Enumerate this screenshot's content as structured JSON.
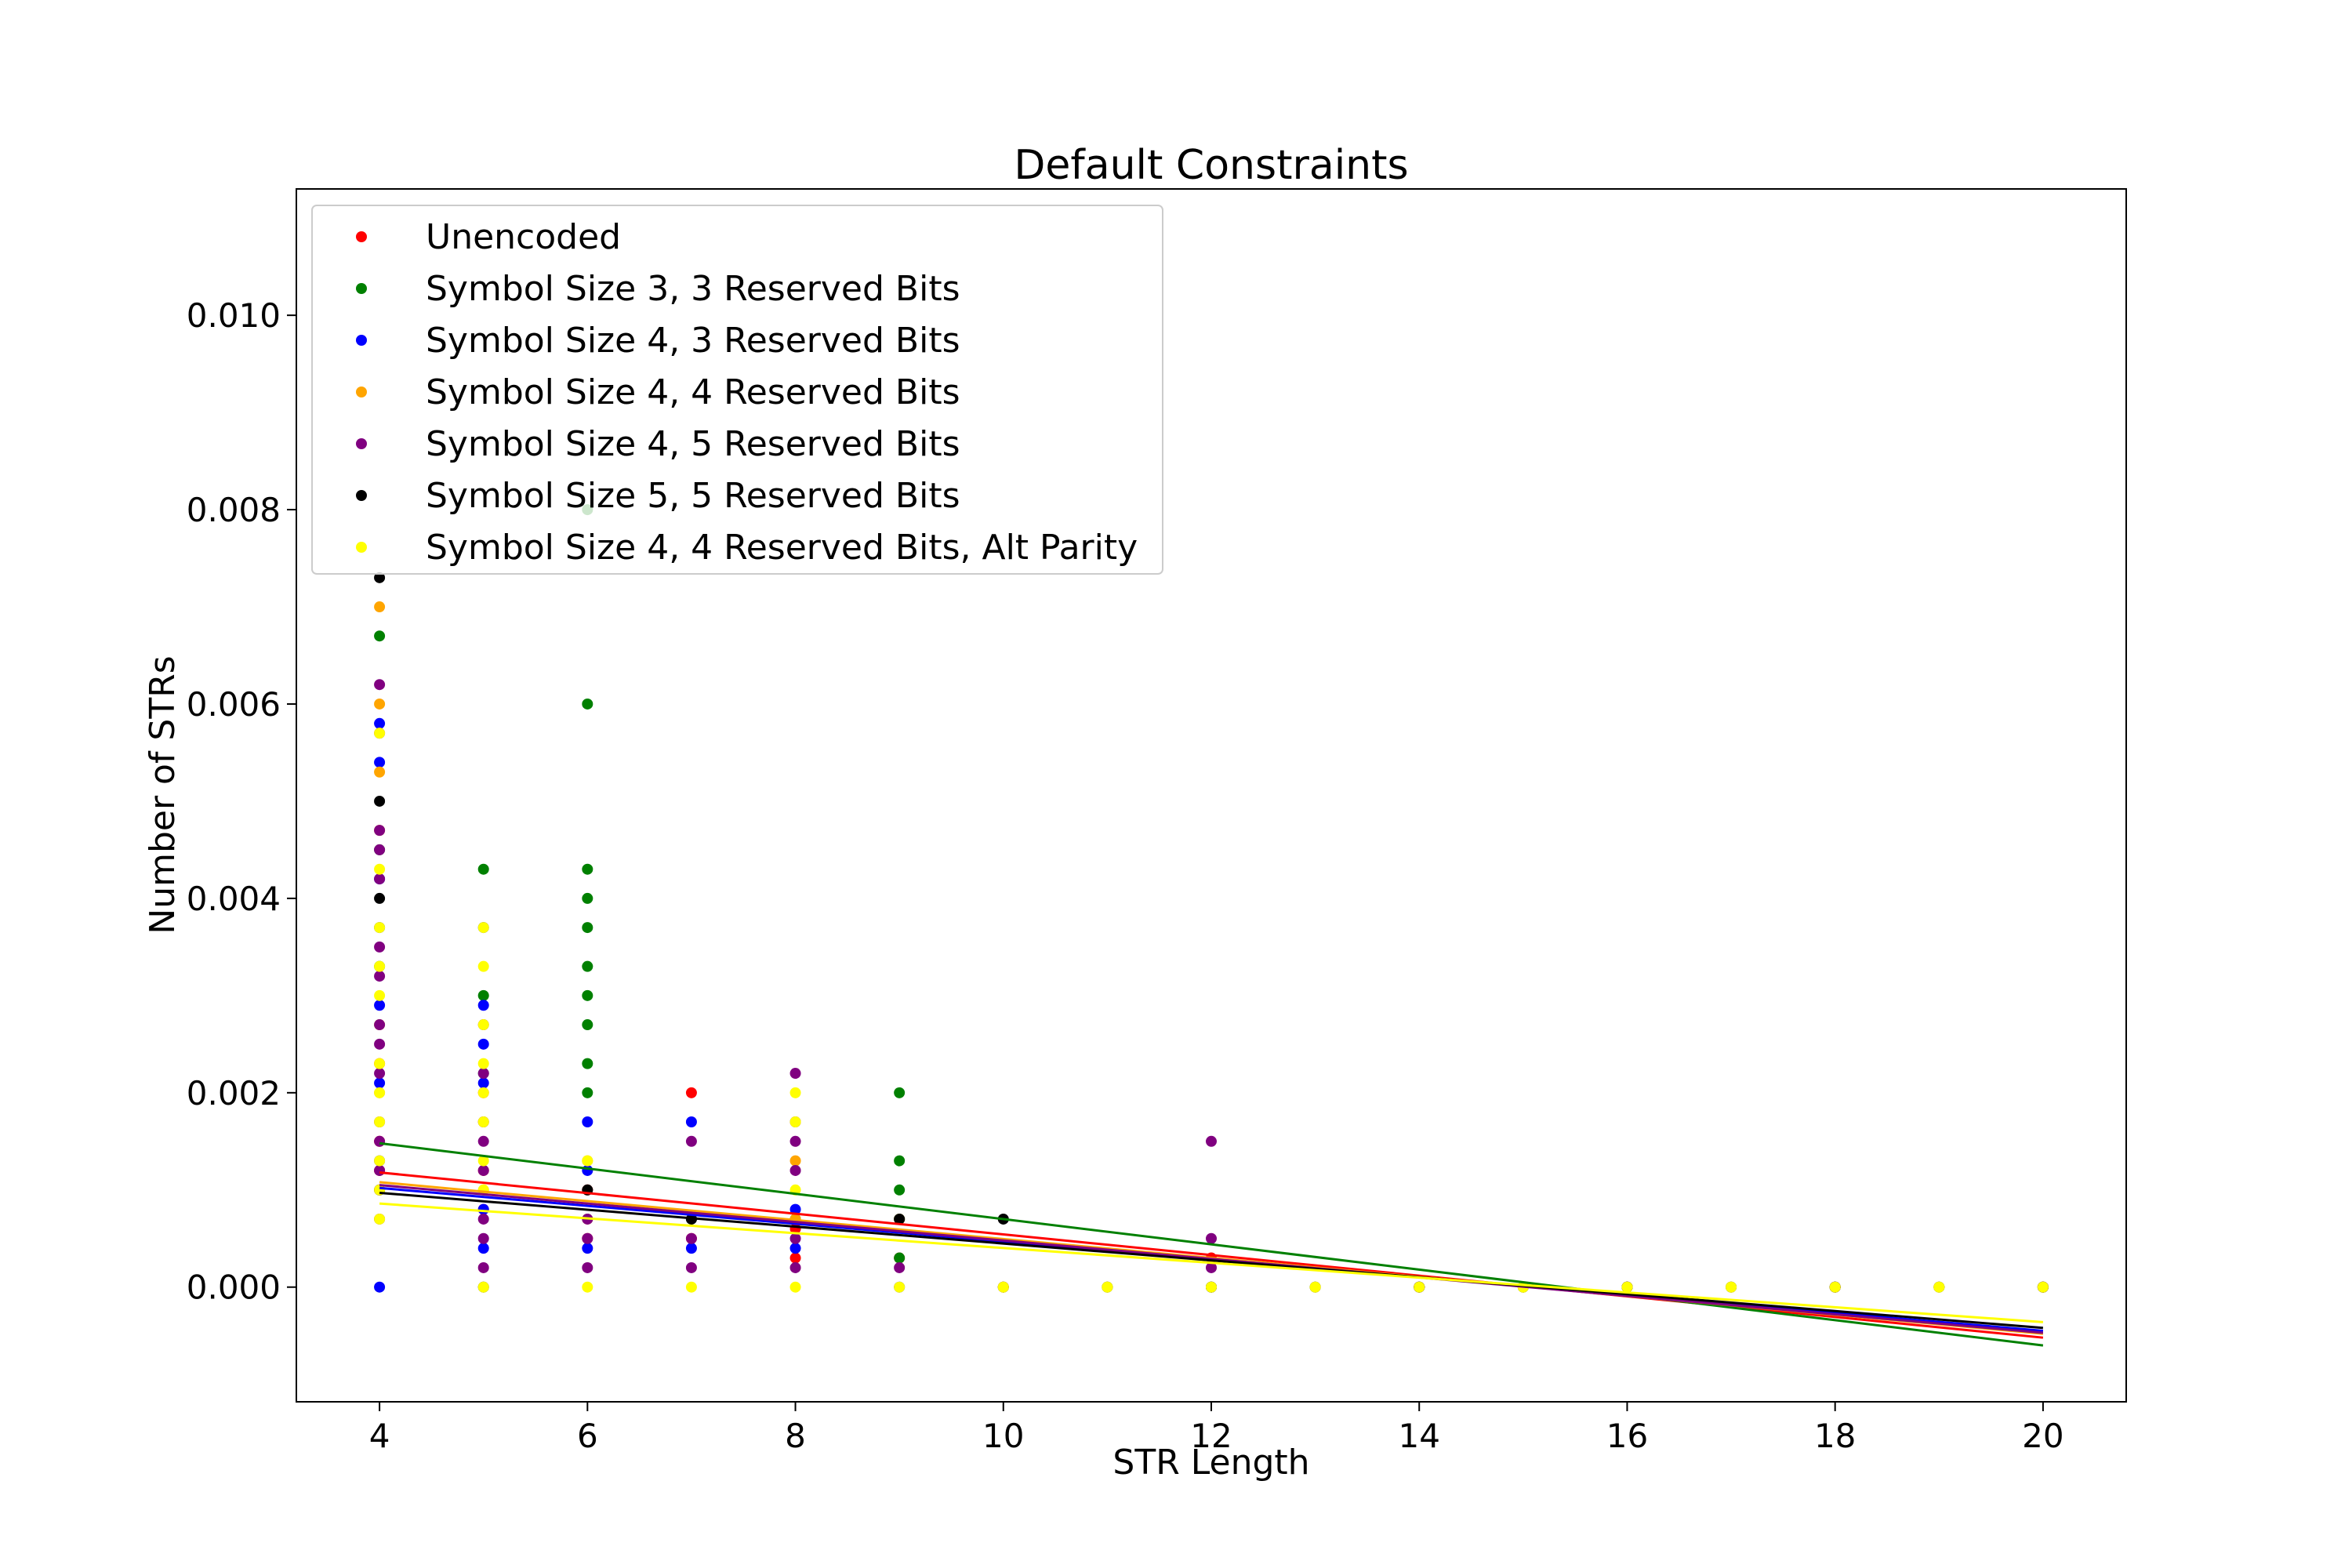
{
  "chart_data": {
    "type": "scatter",
    "title": "Default Constraints",
    "xlabel": "STR Length",
    "ylabel": "Number of STRs",
    "xlim": [
      3.2,
      20.8
    ],
    "ylim": [
      -0.00118,
      0.0113
    ],
    "xticks": [
      4,
      6,
      8,
      10,
      12,
      14,
      16,
      18,
      20
    ],
    "xtick_labels": [
      "4",
      "6",
      "8",
      "10",
      "12",
      "14",
      "16",
      "18",
      "20"
    ],
    "yticks": [
      0.0,
      0.002,
      0.004,
      0.006,
      0.008,
      0.01
    ],
    "ytick_labels": [
      "0.000",
      "0.002",
      "0.004",
      "0.006",
      "0.008",
      "0.010"
    ],
    "grid": false,
    "legend_position": "top-left",
    "series": [
      {
        "name": "Unencoded",
        "color": "#ff0000",
        "points": [
          [
            4,
            0.0012
          ],
          [
            4,
            0.0015
          ],
          [
            4,
            0.0023
          ],
          [
            5,
            0.0008
          ],
          [
            5,
            0.0012
          ],
          [
            5,
            0.002
          ],
          [
            6,
            0.0005
          ],
          [
            6,
            0.001
          ],
          [
            7,
            0.002
          ],
          [
            7,
            0.0005
          ],
          [
            8,
            0.0003
          ],
          [
            8,
            0.0006
          ],
          [
            9,
            0.0003
          ],
          [
            10,
            0.0
          ],
          [
            11,
            0.0
          ],
          [
            12,
            0.0003
          ],
          [
            13,
            0.0
          ],
          [
            14,
            0.0
          ],
          [
            15,
            0.0
          ],
          [
            16,
            0.0
          ],
          [
            17,
            0.0
          ],
          [
            18,
            0.0
          ],
          [
            19,
            0.0
          ],
          [
            20,
            0.0
          ]
        ],
        "trend": [
          [
            4,
            0.00118
          ],
          [
            20,
            -0.00052
          ]
        ]
      },
      {
        "name": "Symbol Size 3, 3 Reserved Bits",
        "color": "#008000",
        "points": [
          [
            4,
            0.0067
          ],
          [
            4,
            0.0045
          ],
          [
            4,
            0.0033
          ],
          [
            5,
            0.0043
          ],
          [
            5,
            0.003
          ],
          [
            5,
            0.0022
          ],
          [
            6,
            0.008
          ],
          [
            6,
            0.006
          ],
          [
            6,
            0.0043
          ],
          [
            6,
            0.004
          ],
          [
            6,
            0.0037
          ],
          [
            6,
            0.0033
          ],
          [
            6,
            0.003
          ],
          [
            6,
            0.0027
          ],
          [
            6,
            0.0023
          ],
          [
            6,
            0.002
          ],
          [
            7,
            0.0007
          ],
          [
            8,
            0.0007
          ],
          [
            9,
            0.002
          ],
          [
            9,
            0.0013
          ],
          [
            9,
            0.001
          ],
          [
            9,
            0.0007
          ],
          [
            9,
            0.0003
          ],
          [
            10,
            0.0
          ],
          [
            11,
            0.0
          ],
          [
            12,
            0.0
          ],
          [
            13,
            0.0
          ],
          [
            14,
            0.0
          ],
          [
            15,
            0.0
          ],
          [
            16,
            0.0
          ],
          [
            17,
            0.0
          ],
          [
            18,
            0.0
          ],
          [
            19,
            0.0
          ],
          [
            20,
            0.0
          ]
        ],
        "trend": [
          [
            4,
            0.00148
          ],
          [
            20,
            -0.0006
          ]
        ]
      },
      {
        "name": "Symbol Size 4, 3 Reserved Bits",
        "color": "#0000ff",
        "points": [
          [
            4,
            0.0
          ],
          [
            4,
            0.0058
          ],
          [
            4,
            0.0054
          ],
          [
            4,
            0.0042
          ],
          [
            4,
            0.0037
          ],
          [
            4,
            0.0029
          ],
          [
            4,
            0.0021
          ],
          [
            4,
            0.0013
          ],
          [
            5,
            0.0037
          ],
          [
            5,
            0.0029
          ],
          [
            5,
            0.0025
          ],
          [
            5,
            0.0021
          ],
          [
            5,
            0.0008
          ],
          [
            5,
            0.0004
          ],
          [
            6,
            0.0017
          ],
          [
            6,
            0.0012
          ],
          [
            6,
            0.0004
          ],
          [
            7,
            0.0017
          ],
          [
            7,
            0.0004
          ],
          [
            8,
            0.0008
          ],
          [
            8,
            0.0004
          ],
          [
            9,
            0.0
          ],
          [
            10,
            0.0
          ],
          [
            12,
            0.0
          ],
          [
            14,
            0.0
          ],
          [
            16,
            0.0
          ],
          [
            18,
            0.0
          ],
          [
            20,
            0.0
          ]
        ],
        "trend": [
          [
            4,
            0.00102
          ],
          [
            20,
            -0.00045
          ]
        ]
      },
      {
        "name": "Symbol Size 4, 4 Reserved Bits",
        "color": "#ffa500",
        "points": [
          [
            4,
            0.007
          ],
          [
            4,
            0.006
          ],
          [
            4,
            0.0053
          ],
          [
            4,
            0.0047
          ],
          [
            4,
            0.0027
          ],
          [
            4,
            0.002
          ],
          [
            5,
            0.0017
          ],
          [
            5,
            0.001
          ],
          [
            6,
            0.0013
          ],
          [
            6,
            0.0007
          ],
          [
            8,
            0.0013
          ],
          [
            8,
            0.0007
          ],
          [
            9,
            0.0007
          ],
          [
            10,
            0.0
          ],
          [
            12,
            0.0
          ],
          [
            14,
            0.0
          ],
          [
            16,
            0.0
          ],
          [
            18,
            0.0
          ],
          [
            20,
            0.0
          ]
        ],
        "trend": [
          [
            4,
            0.00108
          ],
          [
            20,
            -0.00048
          ]
        ]
      },
      {
        "name": "Symbol Size 4, 5 Reserved Bits",
        "color": "#800080",
        "points": [
          [
            4,
            0.0062
          ],
          [
            4,
            0.0057
          ],
          [
            4,
            0.0047
          ],
          [
            4,
            0.0045
          ],
          [
            4,
            0.0042
          ],
          [
            4,
            0.0035
          ],
          [
            4,
            0.0032
          ],
          [
            4,
            0.0027
          ],
          [
            4,
            0.0025
          ],
          [
            4,
            0.0022
          ],
          [
            4,
            0.0017
          ],
          [
            4,
            0.0015
          ],
          [
            4,
            0.0012
          ],
          [
            4,
            0.001
          ],
          [
            4,
            0.0007
          ],
          [
            5,
            0.0027
          ],
          [
            5,
            0.0022
          ],
          [
            5,
            0.0017
          ],
          [
            5,
            0.0015
          ],
          [
            5,
            0.0012
          ],
          [
            5,
            0.0007
          ],
          [
            5,
            0.0005
          ],
          [
            5,
            0.0002
          ],
          [
            6,
            0.0007
          ],
          [
            6,
            0.0005
          ],
          [
            6,
            0.0002
          ],
          [
            7,
            0.0015
          ],
          [
            7,
            0.0005
          ],
          [
            7,
            0.0002
          ],
          [
            8,
            0.0022
          ],
          [
            8,
            0.0017
          ],
          [
            8,
            0.0015
          ],
          [
            8,
            0.0012
          ],
          [
            8,
            0.0005
          ],
          [
            8,
            0.0002
          ],
          [
            9,
            0.0002
          ],
          [
            12,
            0.0015
          ],
          [
            12,
            0.0005
          ],
          [
            12,
            0.0002
          ],
          [
            14,
            0.0
          ],
          [
            16,
            0.0
          ],
          [
            18,
            0.0
          ],
          [
            20,
            0.0
          ]
        ],
        "trend": [
          [
            4,
            0.00105
          ],
          [
            20,
            -0.00047
          ]
        ]
      },
      {
        "name": "Symbol Size 5, 5 Reserved Bits",
        "color": "#000000",
        "points": [
          [
            4,
            0.0073
          ],
          [
            4,
            0.005
          ],
          [
            4,
            0.004
          ],
          [
            4,
            0.001
          ],
          [
            5,
            0.0
          ],
          [
            6,
            0.001
          ],
          [
            7,
            0.0007
          ],
          [
            9,
            0.0007
          ],
          [
            10,
            0.0007
          ],
          [
            12,
            0.0
          ],
          [
            14,
            0.0
          ],
          [
            16,
            0.0
          ],
          [
            18,
            0.0
          ],
          [
            20,
            0.0
          ]
        ],
        "trend": [
          [
            4,
            0.00097
          ],
          [
            20,
            -0.00042
          ]
        ]
      },
      {
        "name": "Symbol Size 4, 4 Reserved Bits, Alt Parity",
        "color": "#ffff00",
        "points": [
          [
            4,
            0.0057
          ],
          [
            4,
            0.0043
          ],
          [
            4,
            0.0037
          ],
          [
            4,
            0.0033
          ],
          [
            4,
            0.003
          ],
          [
            4,
            0.0023
          ],
          [
            4,
            0.002
          ],
          [
            4,
            0.0017
          ],
          [
            4,
            0.0013
          ],
          [
            4,
            0.001
          ],
          [
            4,
            0.0007
          ],
          [
            5,
            0.0037
          ],
          [
            5,
            0.0033
          ],
          [
            5,
            0.0027
          ],
          [
            5,
            0.0023
          ],
          [
            5,
            0.002
          ],
          [
            5,
            0.0017
          ],
          [
            5,
            0.0013
          ],
          [
            5,
            0.001
          ],
          [
            5,
            0.0
          ],
          [
            6,
            0.0013
          ],
          [
            6,
            0.0
          ],
          [
            7,
            0.0
          ],
          [
            8,
            0.002
          ],
          [
            8,
            0.0017
          ],
          [
            8,
            0.001
          ],
          [
            8,
            0.0
          ],
          [
            9,
            0.0
          ],
          [
            10,
            0.0
          ],
          [
            11,
            0.0
          ],
          [
            12,
            0.0
          ],
          [
            13,
            0.0
          ],
          [
            14,
            0.0
          ],
          [
            15,
            0.0
          ],
          [
            16,
            0.0
          ],
          [
            17,
            0.0
          ],
          [
            18,
            0.0
          ],
          [
            19,
            0.0
          ],
          [
            20,
            0.0
          ]
        ],
        "trend": [
          [
            4,
            0.00086
          ],
          [
            20,
            -0.00036
          ]
        ]
      }
    ]
  }
}
